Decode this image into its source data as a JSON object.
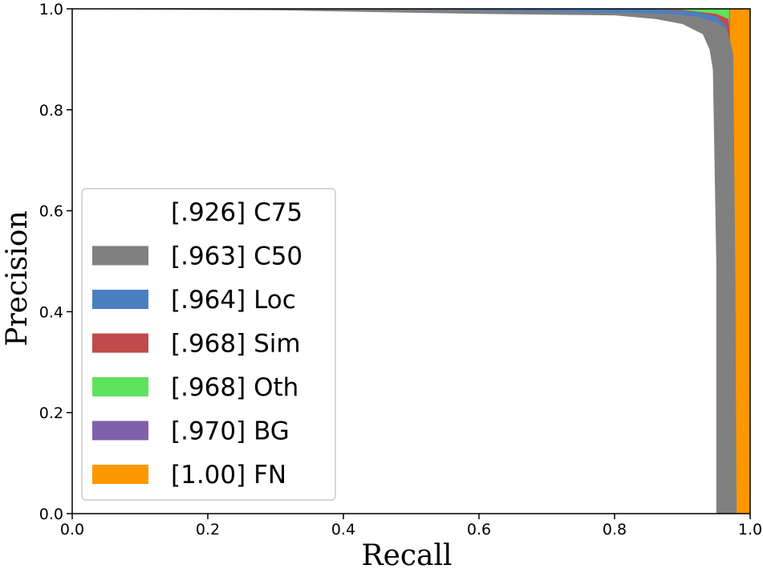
{
  "chart_data": {
    "type": "area",
    "title": "",
    "xlabel": "Recall",
    "ylabel": "Precision",
    "xlim": [
      0,
      1
    ],
    "ylim": [
      0,
      1
    ],
    "xticks": [
      0.0,
      0.2,
      0.4,
      0.6,
      0.8,
      1.0
    ],
    "yticks": [
      0.0,
      0.2,
      0.4,
      0.6,
      0.8,
      1.0
    ],
    "xtick_labels": [
      "0.0",
      "0.2",
      "0.4",
      "0.6",
      "0.8",
      "1.0"
    ],
    "ytick_labels": [
      "0.0",
      "0.2",
      "0.4",
      "0.6",
      "0.8",
      "1.0"
    ],
    "grid": false,
    "legend_position": "lower-left",
    "series": [
      {
        "name": "[.926] C75",
        "color": "#ffffff",
        "x": [
          0.0,
          0.06,
          0.3,
          0.6,
          0.8,
          0.86,
          0.9,
          0.93,
          0.94,
          0.945,
          0.95,
          0.95
        ],
        "y": [
          1.0,
          0.999,
          0.997,
          0.99,
          0.987,
          0.98,
          0.97,
          0.95,
          0.92,
          0.88,
          0.5,
          0.0
        ]
      },
      {
        "name": "[.963] C50",
        "color": "#808080",
        "x": [
          0.0,
          0.4,
          0.55,
          0.7,
          0.82,
          0.88,
          0.92,
          0.94,
          0.955,
          0.965,
          0.97,
          0.975,
          0.978,
          0.98
        ],
        "y": [
          1.0,
          1.0,
          0.998,
          0.995,
          0.992,
          0.99,
          0.985,
          0.978,
          0.97,
          0.96,
          0.94,
          0.91,
          0.5,
          0.0
        ]
      },
      {
        "name": "[.964] Loc",
        "color": "#4a7fc0",
        "x": [
          0.0,
          0.85,
          0.92,
          0.95,
          0.965,
          0.97
        ],
        "y": [
          1.0,
          1.0,
          0.994,
          0.985,
          0.965,
          0.91
        ]
      },
      {
        "name": "[.968] Sim",
        "color": "#c04b4b",
        "x": [
          0.0,
          0.8,
          0.9,
          0.95,
          0.968,
          0.97
        ],
        "y": [
          1.0,
          1.0,
          0.998,
          0.99,
          0.98,
          0.95
        ]
      },
      {
        "name": "[.968] Oth",
        "color": "#5ee35e",
        "x": [
          0.0,
          0.9,
          0.97
        ],
        "y": [
          1.0,
          1.0,
          1.0
        ]
      },
      {
        "name": "[.970] BG",
        "color": "#7f61a9",
        "x": [
          0.0,
          0.97
        ],
        "y": [
          1.0,
          1.0
        ]
      },
      {
        "name": "[1.00] FN",
        "color": "#fc9700",
        "x": [
          0.97,
          0.97,
          1.0,
          1.0
        ],
        "y": [
          0.0,
          1.0,
          1.0,
          0.0
        ]
      }
    ]
  }
}
